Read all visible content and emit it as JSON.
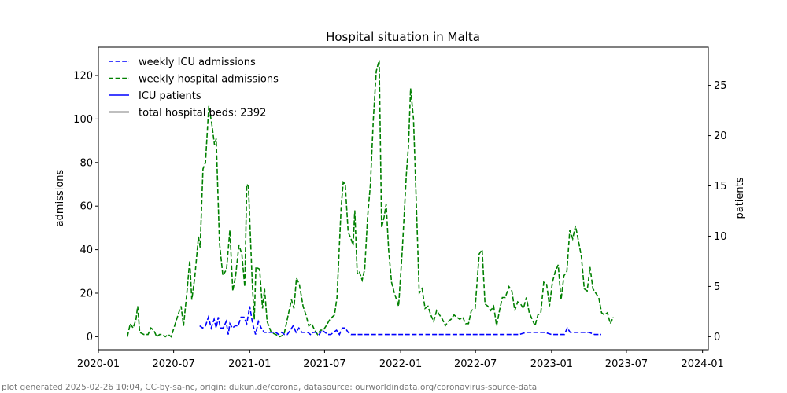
{
  "chart_data": {
    "type": "line",
    "title": "Hospital situation in Malta",
    "xlabel": "",
    "ylabel": "admissions",
    "y2label": "patients",
    "xlim": [
      "2020-01-01",
      "2024-01-15"
    ],
    "ylim": [
      -6,
      133
    ],
    "y2lim": [
      -1.3,
      28.8
    ],
    "x_ticks": [
      "2020-01",
      "2020-07",
      "2021-01",
      "2021-07",
      "2022-01",
      "2022-07",
      "2023-01",
      "2023-07",
      "2024-01"
    ],
    "y_ticks": [
      0,
      20,
      40,
      60,
      80,
      100,
      120
    ],
    "y2_ticks": [
      0,
      5,
      10,
      15,
      20,
      25
    ],
    "legend_position": "top-left",
    "legend": [
      {
        "label": "weekly ICU admissions",
        "color": "#0000ff",
        "style": "dashed"
      },
      {
        "label": "weekly hospital admissions",
        "color": "#008000",
        "style": "dashed"
      },
      {
        "label": "ICU patients",
        "color": "#0000ff",
        "style": "solid"
      },
      {
        "label": "total hospital beds: 2392",
        "color": "#000000",
        "style": "solid"
      }
    ],
    "series": [
      {
        "name": "weekly hospital admissions",
        "axis": "left",
        "color": "#008000",
        "style": "dashed",
        "points": [
          [
            "2020-03-11",
            0
          ],
          [
            "2020-03-18",
            6
          ],
          [
            "2020-03-25",
            4
          ],
          [
            "2020-04-01",
            8
          ],
          [
            "2020-04-05",
            14
          ],
          [
            "2020-04-10",
            2
          ],
          [
            "2020-04-20",
            1
          ],
          [
            "2020-04-30",
            1
          ],
          [
            "2020-05-07",
            4
          ],
          [
            "2020-05-14",
            3
          ],
          [
            "2020-05-21",
            0
          ],
          [
            "2020-05-28",
            1
          ],
          [
            "2020-06-04",
            1
          ],
          [
            "2020-06-11",
            0
          ],
          [
            "2020-06-18",
            1
          ],
          [
            "2020-06-25",
            0
          ],
          [
            "2020-07-05",
            6
          ],
          [
            "2020-07-15",
            12
          ],
          [
            "2020-07-19",
            14
          ],
          [
            "2020-07-25",
            5
          ],
          [
            "2020-08-02",
            20
          ],
          [
            "2020-08-09",
            35
          ],
          [
            "2020-08-14",
            17
          ],
          [
            "2020-08-21",
            27
          ],
          [
            "2020-08-30",
            46
          ],
          [
            "2020-09-03",
            41
          ],
          [
            "2020-09-10",
            77
          ],
          [
            "2020-09-16",
            80
          ],
          [
            "2020-09-24",
            106
          ],
          [
            "2020-10-01",
            98
          ],
          [
            "2020-10-08",
            88
          ],
          [
            "2020-10-12",
            91
          ],
          [
            "2020-10-20",
            43
          ],
          [
            "2020-10-28",
            28
          ],
          [
            "2020-11-06",
            31
          ],
          [
            "2020-11-14",
            49
          ],
          [
            "2020-11-21",
            21
          ],
          [
            "2020-11-28",
            28
          ],
          [
            "2020-12-06",
            42
          ],
          [
            "2020-12-13",
            38
          ],
          [
            "2020-12-20",
            23
          ],
          [
            "2020-12-25",
            70
          ],
          [
            "2020-12-29",
            69
          ],
          [
            "2021-01-07",
            25
          ],
          [
            "2021-01-12",
            8
          ],
          [
            "2021-01-16",
            32
          ],
          [
            "2021-01-25",
            31
          ],
          [
            "2021-02-01",
            13
          ],
          [
            "2021-02-06",
            22
          ],
          [
            "2021-02-12",
            7
          ],
          [
            "2021-02-22",
            2
          ],
          [
            "2021-03-05",
            1
          ],
          [
            "2021-03-15",
            0
          ],
          [
            "2021-03-25",
            1
          ],
          [
            "2021-04-03",
            9
          ],
          [
            "2021-04-12",
            17
          ],
          [
            "2021-04-18",
            13
          ],
          [
            "2021-04-24",
            27
          ],
          [
            "2021-05-01",
            24
          ],
          [
            "2021-05-10",
            14
          ],
          [
            "2021-05-17",
            10
          ],
          [
            "2021-05-24",
            5
          ],
          [
            "2021-05-31",
            6
          ],
          [
            "2021-06-07",
            3
          ],
          [
            "2021-06-14",
            1
          ],
          [
            "2021-06-21",
            3
          ],
          [
            "2021-06-28",
            3
          ],
          [
            "2021-07-05",
            5
          ],
          [
            "2021-07-14",
            8
          ],
          [
            "2021-07-25",
            10
          ],
          [
            "2021-07-31",
            18
          ],
          [
            "2021-08-10",
            59
          ],
          [
            "2021-08-15",
            71
          ],
          [
            "2021-08-20",
            70
          ],
          [
            "2021-08-27",
            48
          ],
          [
            "2021-09-03",
            45
          ],
          [
            "2021-09-08",
            42
          ],
          [
            "2021-09-12",
            58
          ],
          [
            "2021-09-18",
            29
          ],
          [
            "2021-09-23",
            30
          ],
          [
            "2021-09-30",
            26
          ],
          [
            "2021-10-06",
            31
          ],
          [
            "2021-10-13",
            55
          ],
          [
            "2021-10-20",
            70
          ],
          [
            "2021-10-27",
            100
          ],
          [
            "2021-11-03",
            122
          ],
          [
            "2021-11-10",
            127
          ],
          [
            "2021-11-16",
            50
          ],
          [
            "2021-11-22",
            55
          ],
          [
            "2021-11-27",
            61
          ],
          [
            "2021-12-03",
            40
          ],
          [
            "2021-12-10",
            25
          ],
          [
            "2021-12-17",
            20
          ],
          [
            "2021-12-27",
            14
          ],
          [
            "2022-01-05",
            40
          ],
          [
            "2022-01-15",
            75
          ],
          [
            "2022-01-20",
            88
          ],
          [
            "2022-01-25",
            114
          ],
          [
            "2022-02-01",
            100
          ],
          [
            "2022-02-08",
            60
          ],
          [
            "2022-02-15",
            20
          ],
          [
            "2022-02-22",
            22
          ],
          [
            "2022-03-01",
            13
          ],
          [
            "2022-03-08",
            14
          ],
          [
            "2022-03-15",
            10
          ],
          [
            "2022-03-22",
            7
          ],
          [
            "2022-03-29",
            12
          ],
          [
            "2022-04-05",
            10
          ],
          [
            "2022-04-12",
            8
          ],
          [
            "2022-04-19",
            5
          ],
          [
            "2022-04-26",
            7
          ],
          [
            "2022-05-03",
            8
          ],
          [
            "2022-05-10",
            10
          ],
          [
            "2022-05-17",
            9
          ],
          [
            "2022-05-24",
            8
          ],
          [
            "2022-05-31",
            9
          ],
          [
            "2022-06-07",
            6
          ],
          [
            "2022-06-14",
            6
          ],
          [
            "2022-06-21",
            12
          ],
          [
            "2022-06-30",
            13
          ],
          [
            "2022-07-10",
            38
          ],
          [
            "2022-07-17",
            40
          ],
          [
            "2022-07-24",
            15
          ],
          [
            "2022-07-31",
            14
          ],
          [
            "2022-08-07",
            12
          ],
          [
            "2022-08-14",
            14
          ],
          [
            "2022-08-21",
            5
          ],
          [
            "2022-08-28",
            12
          ],
          [
            "2022-09-04",
            18
          ],
          [
            "2022-09-11",
            18
          ],
          [
            "2022-09-20",
            23
          ],
          [
            "2022-09-27",
            21
          ],
          [
            "2022-10-04",
            12
          ],
          [
            "2022-10-11",
            16
          ],
          [
            "2022-10-18",
            15
          ],
          [
            "2022-10-25",
            13
          ],
          [
            "2022-11-01",
            18
          ],
          [
            "2022-11-08",
            11
          ],
          [
            "2022-11-15",
            8
          ],
          [
            "2022-11-22",
            5
          ],
          [
            "2022-11-29",
            10
          ],
          [
            "2022-12-06",
            11
          ],
          [
            "2022-12-13",
            25
          ],
          [
            "2022-12-20",
            24
          ],
          [
            "2022-12-27",
            14
          ],
          [
            "2023-01-03",
            25
          ],
          [
            "2023-01-10",
            30
          ],
          [
            "2023-01-17",
            33
          ],
          [
            "2023-01-24",
            17
          ],
          [
            "2023-01-31",
            28
          ],
          [
            "2023-02-07",
            30
          ],
          [
            "2023-02-14",
            49
          ],
          [
            "2023-02-21",
            45
          ],
          [
            "2023-02-28",
            51
          ],
          [
            "2023-03-07",
            44
          ],
          [
            "2023-03-14",
            37
          ],
          [
            "2023-03-21",
            22
          ],
          [
            "2023-03-28",
            21
          ],
          [
            "2023-04-04",
            32
          ],
          [
            "2023-04-11",
            22
          ],
          [
            "2023-04-18",
            20
          ],
          [
            "2023-04-25",
            18
          ],
          [
            "2023-05-02",
            11
          ],
          [
            "2023-05-09",
            10
          ],
          [
            "2023-05-16",
            11
          ],
          [
            "2023-05-23",
            6
          ],
          [
            "2023-05-30",
            9
          ]
        ]
      },
      {
        "name": "weekly ICU admissions",
        "axis": "left",
        "color": "#0000ff",
        "style": "dashed",
        "points": [
          [
            "2020-09-02",
            5
          ],
          [
            "2020-09-09",
            4
          ],
          [
            "2020-09-16",
            5
          ],
          [
            "2020-09-23",
            9
          ],
          [
            "2020-09-30",
            4
          ],
          [
            "2020-10-07",
            8
          ],
          [
            "2020-10-12",
            4
          ],
          [
            "2020-10-17",
            9
          ],
          [
            "2020-10-22",
            4
          ],
          [
            "2020-10-29",
            4
          ],
          [
            "2020-11-05",
            7
          ],
          [
            "2020-11-10",
            1
          ],
          [
            "2020-11-14",
            6
          ],
          [
            "2020-11-20",
            4
          ],
          [
            "2020-11-27",
            5
          ],
          [
            "2020-12-04",
            5
          ],
          [
            "2020-12-11",
            9
          ],
          [
            "2020-12-18",
            9
          ],
          [
            "2020-12-25",
            6
          ],
          [
            "2021-01-01",
            14
          ],
          [
            "2021-01-08",
            6
          ],
          [
            "2021-01-15",
            1
          ],
          [
            "2021-01-22",
            7
          ],
          [
            "2021-01-29",
            4
          ],
          [
            "2021-02-05",
            2
          ],
          [
            "2021-02-12",
            2
          ],
          [
            "2021-02-19",
            2
          ],
          [
            "2021-02-26",
            2
          ],
          [
            "2021-03-05",
            2
          ],
          [
            "2021-03-12",
            1
          ],
          [
            "2021-03-19",
            2
          ],
          [
            "2021-03-26",
            1
          ],
          [
            "2021-04-02",
            1
          ],
          [
            "2021-04-09",
            3
          ],
          [
            "2021-04-16",
            5
          ],
          [
            "2021-04-23",
            2
          ],
          [
            "2021-04-30",
            4
          ],
          [
            "2021-05-07",
            2
          ],
          [
            "2021-05-14",
            2
          ],
          [
            "2021-05-21",
            2
          ],
          [
            "2021-05-28",
            1
          ],
          [
            "2021-06-04",
            2
          ],
          [
            "2021-06-11",
            2
          ],
          [
            "2021-06-18",
            1
          ],
          [
            "2021-06-25",
            3
          ],
          [
            "2021-07-02",
            2
          ],
          [
            "2021-07-09",
            1
          ],
          [
            "2021-07-16",
            1
          ],
          [
            "2021-07-23",
            2
          ],
          [
            "2021-07-30",
            3
          ],
          [
            "2021-08-06",
            1
          ],
          [
            "2021-08-13",
            4
          ],
          [
            "2021-08-20",
            4
          ],
          [
            "2021-08-27",
            2
          ],
          [
            "2021-09-03",
            1
          ],
          [
            "2021-09-17",
            1
          ],
          [
            "2021-10-01",
            1
          ],
          [
            "2021-10-15",
            1
          ],
          [
            "2021-11-01",
            1
          ],
          [
            "2021-11-15",
            1
          ],
          [
            "2021-12-01",
            1
          ],
          [
            "2021-12-15",
            1
          ],
          [
            "2022-01-01",
            1
          ],
          [
            "2022-01-15",
            1
          ],
          [
            "2022-02-01",
            1
          ],
          [
            "2022-02-15",
            1
          ],
          [
            "2022-03-01",
            1
          ],
          [
            "2022-03-15",
            1
          ],
          [
            "2022-04-01",
            1
          ],
          [
            "2022-04-15",
            1
          ],
          [
            "2022-05-01",
            1
          ],
          [
            "2022-05-15",
            1
          ],
          [
            "2022-06-01",
            1
          ],
          [
            "2022-06-15",
            1
          ],
          [
            "2022-07-01",
            1
          ],
          [
            "2022-07-15",
            1
          ],
          [
            "2022-08-01",
            1
          ],
          [
            "2022-08-15",
            1
          ],
          [
            "2022-09-01",
            1
          ],
          [
            "2022-09-15",
            1
          ],
          [
            "2022-10-01",
            1
          ],
          [
            "2022-10-15",
            1
          ],
          [
            "2022-11-01",
            2
          ],
          [
            "2022-11-15",
            2
          ],
          [
            "2022-12-01",
            2
          ],
          [
            "2022-12-15",
            2
          ],
          [
            "2023-01-01",
            1
          ],
          [
            "2023-01-15",
            1
          ],
          [
            "2023-02-01",
            1
          ],
          [
            "2023-02-08",
            4
          ],
          [
            "2023-02-15",
            2
          ],
          [
            "2023-03-01",
            2
          ],
          [
            "2023-03-15",
            2
          ],
          [
            "2023-04-01",
            2
          ],
          [
            "2023-04-15",
            1
          ],
          [
            "2023-05-01",
            1
          ]
        ]
      }
    ]
  },
  "footer": "plot generated 2025-02-26 10:04, CC-by-sa-nc, origin: dukun.de/corona, datasource: ourworldindata.org/coronavirus-source-data"
}
